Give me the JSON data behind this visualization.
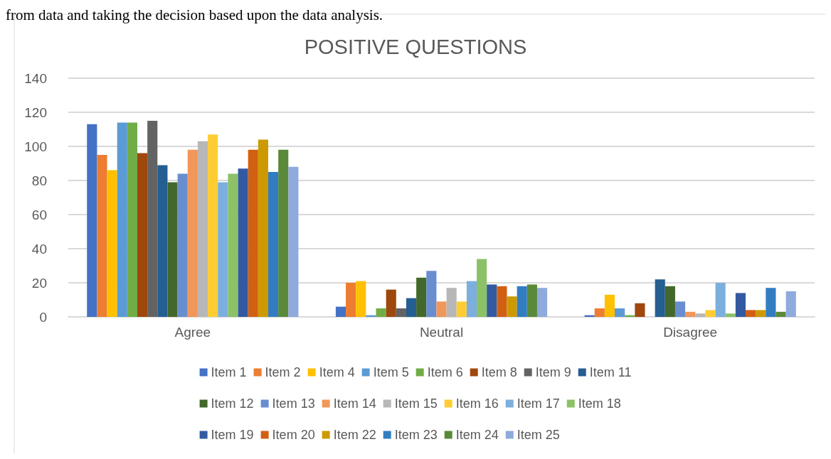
{
  "chart_data": {
    "type": "bar",
    "title": "POSITIVE QUESTIONS",
    "annotations": [
      "from data and taking the decision based upon the data analysis."
    ],
    "categories": [
      "Agree",
      "Neutral",
      "Disagree"
    ],
    "series": [
      {
        "name": "Item 1",
        "color": "#4472c4",
        "values": [
          113,
          6,
          1
        ]
      },
      {
        "name": "Item 2",
        "color": "#ed7d31",
        "values": [
          95,
          20,
          5
        ]
      },
      {
        "name": "Item 4",
        "color": "#ffc000",
        "values": [
          86,
          21,
          13
        ]
      },
      {
        "name": "Item 5",
        "color": "#5b9bd5",
        "values": [
          114,
          1,
          5
        ]
      },
      {
        "name": "Item 6",
        "color": "#70ad47",
        "values": [
          114,
          5,
          1
        ]
      },
      {
        "name": "Item 8",
        "color": "#9e480e",
        "values": [
          96,
          16,
          8
        ]
      },
      {
        "name": "Item 9",
        "color": "#636363",
        "values": [
          115,
          5,
          0
        ]
      },
      {
        "name": "Item 11",
        "color": "#255e91",
        "values": [
          89,
          11,
          22
        ]
      },
      {
        "name": "Item 12",
        "color": "#43682b",
        "values": [
          79,
          23,
          18
        ]
      },
      {
        "name": "Item 13",
        "color": "#698ed0",
        "values": [
          84,
          27,
          9
        ]
      },
      {
        "name": "Item 14",
        "color": "#f1975a",
        "values": [
          98,
          9,
          3
        ]
      },
      {
        "name": "Item 15",
        "color": "#b7b7b7",
        "values": [
          103,
          17,
          2
        ]
      },
      {
        "name": "Item 16",
        "color": "#ffcd33",
        "values": [
          107,
          9,
          4
        ]
      },
      {
        "name": "Item 17",
        "color": "#7cafdd",
        "values": [
          79,
          21,
          20
        ]
      },
      {
        "name": "Item 18",
        "color": "#8cc168",
        "values": [
          84,
          34,
          2
        ]
      },
      {
        "name": "Item 19",
        "color": "#335aa1",
        "values": [
          87,
          19,
          14
        ]
      },
      {
        "name": "Item 20",
        "color": "#d26012",
        "values": [
          98,
          18,
          4
        ]
      },
      {
        "name": "Item 22",
        "color": "#cc9a00",
        "values": [
          104,
          12,
          4
        ]
      },
      {
        "name": "Item 23",
        "color": "#327dc2",
        "values": [
          85,
          18,
          17
        ]
      },
      {
        "name": "Item 24",
        "color": "#5a8a39",
        "values": [
          98,
          19,
          3
        ]
      },
      {
        "name": "Item 25",
        "color": "#8faadc",
        "values": [
          88,
          17,
          15
        ]
      }
    ],
    "ylim": [
      0,
      140
    ],
    "yticks": [
      0,
      20,
      40,
      60,
      80,
      100,
      120,
      140
    ],
    "grid": "y",
    "legend": "bottom"
  }
}
